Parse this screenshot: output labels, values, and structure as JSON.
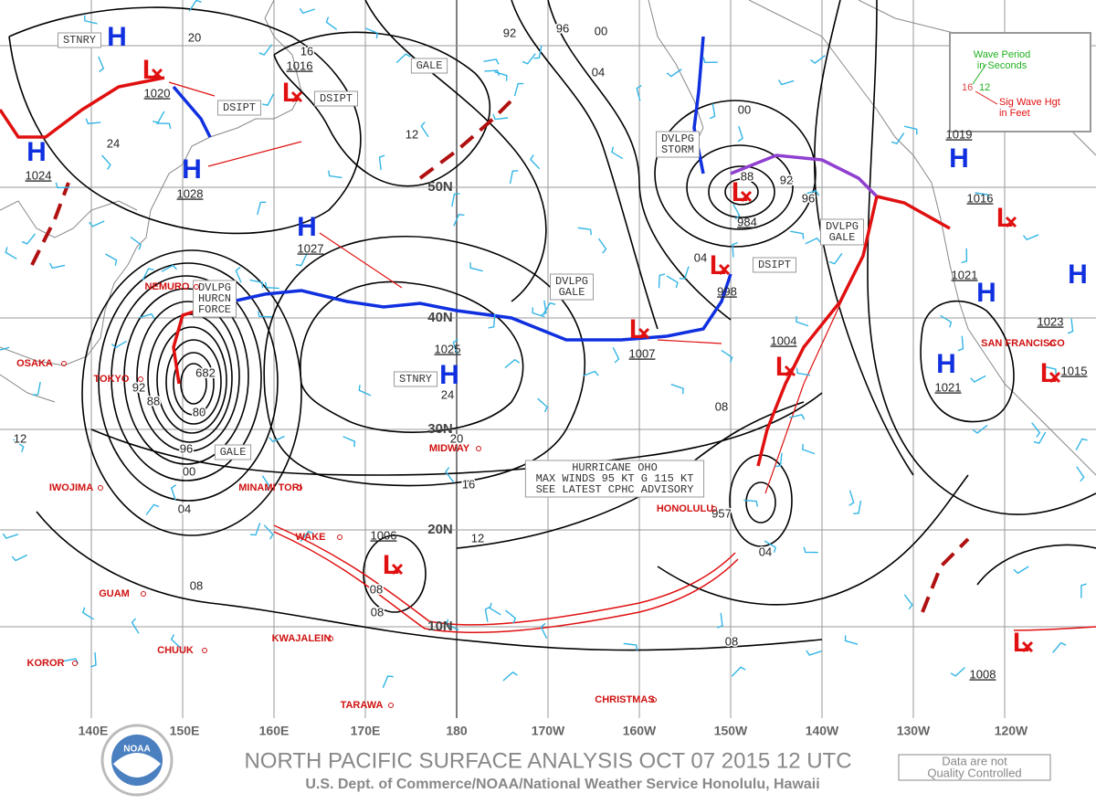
{
  "map": {
    "lon_labels": [
      "140E",
      "150E",
      "160E",
      "170E",
      "180",
      "170W",
      "160W",
      "150W",
      "140W",
      "130W",
      "120W"
    ],
    "lat_labels": [
      "50N",
      "40N",
      "30N",
      "20N",
      "10N"
    ],
    "centers": [
      {
        "symbol": "H",
        "pressure": "1024"
      },
      {
        "symbol": "L",
        "pressure": "1020"
      },
      {
        "symbol": "H",
        "pressure": "1028"
      },
      {
        "symbol": "H",
        "pressure": "1027"
      },
      {
        "symbol": "H",
        "pressure": "1025"
      },
      {
        "symbol": "L",
        "pressure": "1007"
      },
      {
        "symbol": "L",
        "pressure": "984"
      },
      {
        "symbol": "L",
        "pressure": "998"
      },
      {
        "symbol": "L",
        "pressure": "1004"
      },
      {
        "symbol": "L",
        "pressure": "1006"
      },
      {
        "symbol": "H",
        "pressure": "1019"
      },
      {
        "symbol": "L",
        "pressure": "1016"
      },
      {
        "symbol": "H",
        "pressure": "1021"
      },
      {
        "symbol": "H",
        "pressure": "1023"
      },
      {
        "symbol": "H",
        "pressure": "1021"
      },
      {
        "symbol": "L",
        "pressure": "1015"
      },
      {
        "symbol": "L",
        "pressure": "1008"
      },
      {
        "symbol": "L",
        "pressure": "1016"
      },
      {
        "symbol": "H"
      }
    ],
    "boxes": [
      [
        "STNRY"
      ],
      [
        "DSIPT"
      ],
      [
        "DSIPT"
      ],
      [
        "GALE"
      ],
      [
        "DVLPG",
        "STORM"
      ],
      [
        "DVLPG",
        "GALE"
      ],
      [
        "DSIPT"
      ],
      [
        "DVLPG",
        "HURCN",
        "FORCE"
      ],
      [
        "DVLPG",
        "GALE"
      ],
      [
        "STNRY"
      ],
      [
        "GALE"
      ],
      [
        "HURRICANE OHO",
        "MAX WINDS 95 KT G 115 KT",
        "SEE LATEST CPHC ADVISORY"
      ]
    ],
    "places": [
      "OSAKA",
      "TOKYO",
      "NEMURO",
      "IWOJIMA",
      "MINAMI TORI",
      "MIDWAY",
      "WAKE",
      "GUAM",
      "CHUUK",
      "KWAJALEIN",
      "KOROR",
      "TARAWA",
      "CHRISTMAS",
      "HONOLULU",
      "SAN FRANCISCO"
    ],
    "isobar_labels": [
      "92",
      "96",
      "00",
      "04",
      "16",
      "12",
      "20",
      "24",
      "88",
      "92",
      "96",
      "00",
      "04",
      "08",
      "08",
      "12",
      "16",
      "20",
      "24",
      "08",
      "04",
      "92",
      "88",
      "80",
      "96",
      "00",
      "04",
      "08",
      "12",
      "08",
      "957",
      "682"
    ]
  },
  "legend": {
    "period_label": [
      "Wave Period",
      "in Seconds"
    ],
    "period_example": "12",
    "height_example": "16",
    "height_label": [
      "Sig Wave Hgt",
      "in Feet"
    ]
  },
  "footer": {
    "title": "NORTH PACIFIC SURFACE ANALYSIS OCT 07 2015 12 UTC",
    "subtitle": "U.S. Dept. of Commerce/NOAA/National Weather Service Honolulu, Hawaii",
    "disclaimer": [
      "Data are not",
      "Quality Controlled"
    ],
    "logo": "NOAA"
  }
}
